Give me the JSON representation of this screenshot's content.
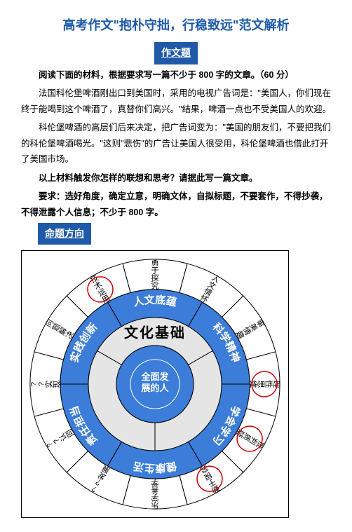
{
  "title": "高考作文\"抱朴守拙，行稳致远\"范文解析",
  "labels": {
    "essayTopic": "作文题",
    "direction": "命题方向"
  },
  "paras": {
    "p1": "阅读下面的材料，根据要求写一篇不少于 800 字的文章。（60 分）",
    "p2": "法国科伦堡啤酒刚出口到美国时，采用的电视广告词是：\"美国人，你们现在终于能喝到这个啤酒了，真替你们高兴。\"结果，啤酒一点也不受美国人的欢迎。",
    "p3": "科伦堡啤酒的高层们后来决定，把广告词变为：\"美国的朋友们，不要把我们的科伦堡啤酒喝光。\"这则\"悲伤\"的广告让美国人很受用，科伦堡啤酒也借此打开了美国市场。",
    "p4": "以上材料触发你怎样的联想和思考？请据此写一篇文章。",
    "p5": "要求：选好角度，确定立意，明确文体，自拟标题，不要套作，不得抄袭，不得泄露个人信息；不少于 800 字。"
  },
  "chart": {
    "center1": "文化基础",
    "center2a": "全面发",
    "center2b": "展的人",
    "blueRing": [
      "人文底蕴",
      "科学精神",
      "学会学习",
      "健康生活",
      "责任担当",
      "实践创新"
    ],
    "midRing": [
      "勇于探究",
      "人文情怀",
      "审美情趣",
      "理性思维",
      "批判质疑",
      "勤于探究",
      "乐学善学",
      "??发展",
      "??认同",
      "??实现",
      "问题解决",
      "技术运用"
    ],
    "highlight": [
      3,
      4,
      5,
      11
    ],
    "colors": {
      "blue": "#3b7dd8",
      "grey": "#e5e5e5",
      "line": "#000",
      "redRing": "#c00"
    }
  }
}
